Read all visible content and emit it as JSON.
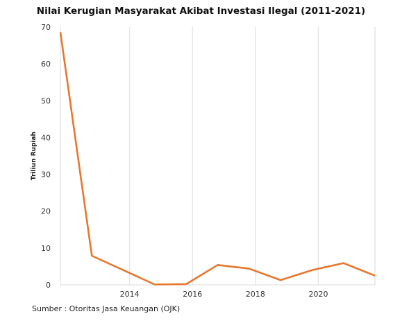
{
  "chart_data": {
    "type": "line",
    "title": "Nilai Kerugian Masyarakat Akibat Investasi Ilegal (2011-2021)",
    "ylabel": "Triliun Rupiah",
    "xlabel": "",
    "ylim": [
      0,
      70
    ],
    "xlim": [
      2011.8,
      2021.8
    ],
    "x_ticks": [
      2014,
      2016,
      2018,
      2020
    ],
    "y_ticks": [
      0,
      10,
      20,
      30,
      40,
      50,
      60,
      70
    ],
    "grid": "vertical",
    "series": [
      {
        "color": "#e8772e",
        "x": [
          2011.8,
          2012.8,
          2013.8,
          2014.8,
          2015.8,
          2016.8,
          2017.8,
          2018.8,
          2019.8,
          2020.8,
          2021.8
        ],
        "values": [
          68.6,
          7.9,
          4.0,
          0.1,
          0.2,
          5.4,
          4.4,
          1.3,
          4.0,
          5.9,
          2.5
        ]
      }
    ]
  },
  "source": "Sumber : Otoritas Jasa Keuangan (OJK)"
}
